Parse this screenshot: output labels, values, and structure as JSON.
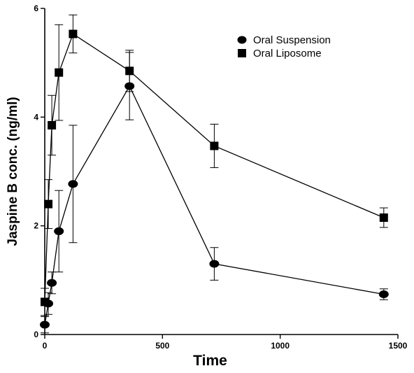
{
  "chart_data": {
    "type": "line",
    "xlabel": "Time",
    "ylabel": "Jaspine B conc. (ng/ml)",
    "xlim": [
      0,
      1500
    ],
    "ylim": [
      0,
      6
    ],
    "xticks": [
      0,
      500,
      1000,
      1500
    ],
    "yticks": [
      0,
      2,
      4,
      6
    ],
    "grid": false,
    "legend_position": "top-right",
    "series": [
      {
        "name": "Oral Suspension",
        "marker": "circle",
        "color": "#000000",
        "points": [
          {
            "x": 0,
            "y": 0.18,
            "err": 0.15
          },
          {
            "x": 15,
            "y": 0.57,
            "err": 0.2
          },
          {
            "x": 30,
            "y": 0.95,
            "err": 0.2
          },
          {
            "x": 60,
            "y": 1.9,
            "err": 0.75
          },
          {
            "x": 120,
            "y": 2.77,
            "err": 1.08
          },
          {
            "x": 360,
            "y": 4.57,
            "err": 0.62
          },
          {
            "x": 720,
            "y": 1.3,
            "err": 0.3
          },
          {
            "x": 1440,
            "y": 0.74,
            "err": 0.1
          }
        ]
      },
      {
        "name": "Oral Liposome",
        "marker": "square",
        "color": "#000000",
        "points": [
          {
            "x": 0,
            "y": 0.6,
            "err": 0.25
          },
          {
            "x": 15,
            "y": 2.4,
            "err": 0.45
          },
          {
            "x": 30,
            "y": 3.85,
            "err": 0.55
          },
          {
            "x": 60,
            "y": 4.82,
            "err": 0.88
          },
          {
            "x": 120,
            "y": 5.53,
            "err": 0.35
          },
          {
            "x": 360,
            "y": 4.85,
            "err": 0.38
          },
          {
            "x": 720,
            "y": 3.47,
            "err": 0.4
          },
          {
            "x": 1440,
            "y": 2.15,
            "err": 0.18
          }
        ]
      }
    ]
  }
}
